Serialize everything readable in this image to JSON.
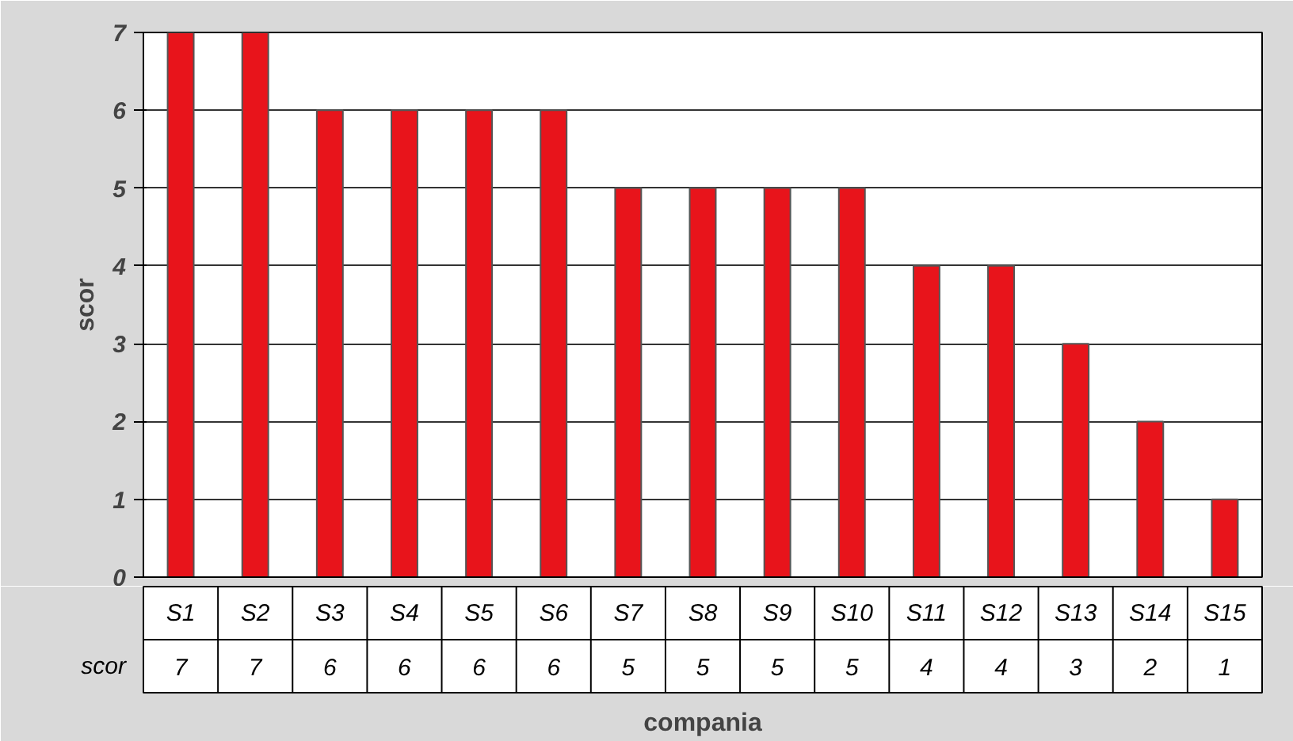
{
  "chart_data": {
    "type": "bar",
    "xlabel": "compania",
    "ylabel": "scor",
    "categories": [
      "S1",
      "S2",
      "S3",
      "S4",
      "S5",
      "S6",
      "S7",
      "S8",
      "S9",
      "S10",
      "S11",
      "S12",
      "S13",
      "S14",
      "S15"
    ],
    "series": [
      {
        "name": "scor",
        "color": "#e8141b",
        "values": [
          7,
          7,
          6,
          6,
          6,
          6,
          5,
          5,
          5,
          5,
          4,
          4,
          3,
          2,
          1
        ]
      }
    ],
    "ylim": [
      0,
      7
    ],
    "yticks": [
      0,
      1,
      2,
      3,
      4,
      5,
      6,
      7
    ],
    "grid": "y",
    "data_labels": true
  }
}
